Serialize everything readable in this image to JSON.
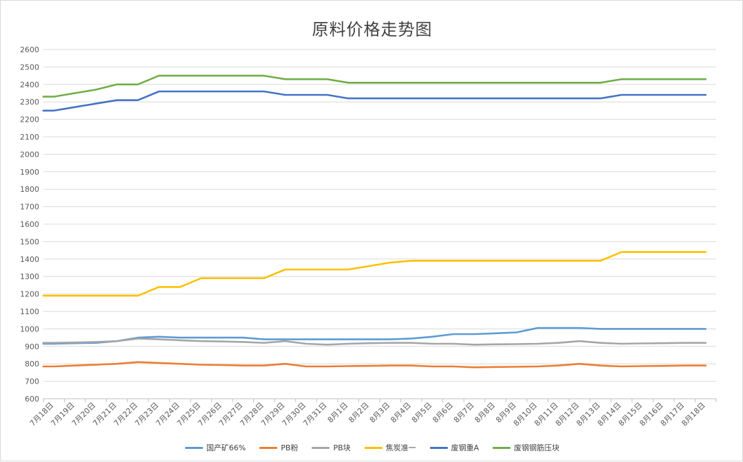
{
  "chart_data": {
    "type": "line",
    "title": "原料价格走势图",
    "ylim": [
      600,
      2600
    ],
    "yticks": [
      600,
      700,
      800,
      900,
      1000,
      1100,
      1200,
      1300,
      1400,
      1500,
      1600,
      1700,
      1800,
      1900,
      2000,
      2100,
      2200,
      2300,
      2400,
      2500,
      2600
    ],
    "grid": true,
    "legend_position": "bottom",
    "categories": [
      "7月18日",
      "7月19日",
      "7月20日",
      "7月21日",
      "7月22日",
      "7月23日",
      "7月24日",
      "7月25日",
      "7月26日",
      "7月27日",
      "7月28日",
      "7月29日",
      "7月30日",
      "7月31日",
      "8月1日",
      "8月2日",
      "8月3日",
      "8月4日",
      "8月5日",
      "8月6日",
      "8月7日",
      "8月8日",
      "8月9日",
      "8月10日",
      "8月11日",
      "8月12日",
      "8月13日",
      "8月14日",
      "8月15日",
      "8月16日",
      "8月17日",
      "8月18日"
    ],
    "x": [
      0,
      0.5,
      1.5,
      2.5,
      3.5,
      4.5,
      5.5,
      6.5,
      7.5,
      8.5,
      9.5,
      10.5,
      11.5,
      12.5,
      13.5,
      14.5,
      15.5,
      16.5,
      17.5,
      18.5,
      19.5,
      20.5,
      21.5,
      22.5,
      23.5,
      24.5,
      25.5,
      26.5,
      27.5,
      28.5,
      29.5,
      30.5,
      31.5
    ],
    "series": [
      {
        "name": "国产矿66%",
        "color": "#5b9bd5",
        "values": [
          915,
          915,
          918,
          920,
          930,
          950,
          955,
          950,
          950,
          950,
          950,
          940,
          940,
          940,
          940,
          940,
          940,
          940,
          945,
          955,
          970,
          970,
          975,
          980,
          1005,
          1005,
          1005,
          1000,
          1000,
          1000,
          1000,
          1000,
          1000
        ]
      },
      {
        "name": "PB粉",
        "color": "#ed7d31",
        "values": [
          785,
          785,
          790,
          795,
          800,
          810,
          805,
          800,
          795,
          793,
          790,
          790,
          800,
          785,
          785,
          787,
          788,
          790,
          790,
          785,
          785,
          780,
          782,
          783,
          785,
          790,
          800,
          790,
          785,
          787,
          788,
          790,
          790
        ]
      },
      {
        "name": "PB块",
        "color": "#a5a5a5",
        "values": [
          920,
          920,
          922,
          925,
          930,
          945,
          940,
          935,
          930,
          928,
          925,
          920,
          930,
          915,
          910,
          915,
          918,
          920,
          920,
          915,
          915,
          910,
          912,
          913,
          915,
          920,
          930,
          920,
          915,
          917,
          918,
          920,
          920
        ]
      },
      {
        "name": "焦炭准一",
        "color": "#ffc000",
        "values": [
          1190,
          1190,
          1190,
          1190,
          1190,
          1190,
          1240,
          1240,
          1290,
          1290,
          1290,
          1290,
          1340,
          1340,
          1340,
          1340,
          1360,
          1380,
          1390,
          1390,
          1390,
          1390,
          1390,
          1390,
          1390,
          1390,
          1390,
          1390,
          1440,
          1440,
          1440,
          1440,
          1440
        ]
      },
      {
        "name": "废钢重A",
        "color": "#4472c4",
        "values": [
          2250,
          2250,
          2270,
          2290,
          2310,
          2310,
          2360,
          2360,
          2360,
          2360,
          2360,
          2360,
          2340,
          2340,
          2340,
          2320,
          2320,
          2320,
          2320,
          2320,
          2320,
          2320,
          2320,
          2320,
          2320,
          2320,
          2320,
          2320,
          2340,
          2340,
          2340,
          2340,
          2340
        ]
      },
      {
        "name": "废钢钢筋压块",
        "color": "#70ad47",
        "values": [
          2330,
          2330,
          2350,
          2370,
          2400,
          2400,
          2450,
          2450,
          2450,
          2450,
          2450,
          2450,
          2430,
          2430,
          2430,
          2410,
          2410,
          2410,
          2410,
          2410,
          2410,
          2410,
          2410,
          2410,
          2410,
          2410,
          2410,
          2410,
          2430,
          2430,
          2430,
          2430,
          2430
        ]
      }
    ]
  }
}
